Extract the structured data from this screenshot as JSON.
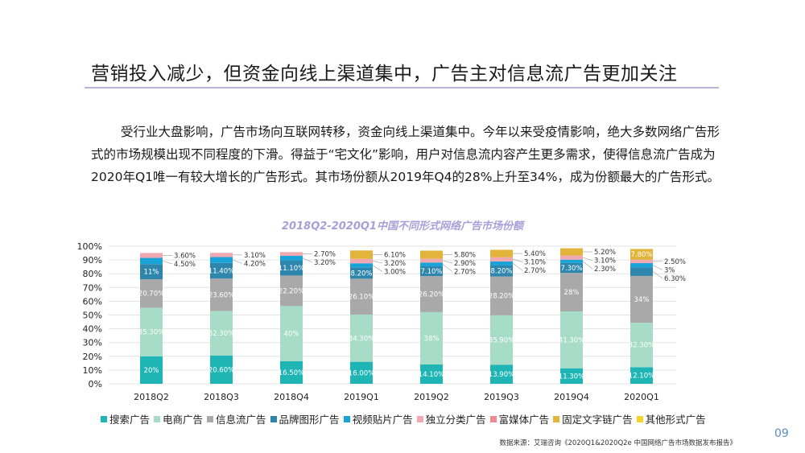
{
  "title": "营销投入减少，但资金向线上渠道集中，广告主对信息流广告更加关注",
  "paragraph": "受行业大盘影响，广告市场向互联网转移，资金向线上渠道集中。今年以来受疫情影响，绝大多数网络广告形式的市场规模出现不同程度的下滑。得益于“宅文化”影响，用户对信息流内容产生更多需求，使得信息流广告成为2020年Q1唯一有较大增长的广告形式。其市场份额从2019年Q4的28%上升至34%，成为份额最大的广告形式。",
  "source": "数据来源：艾瑞咨询《2020Q1&2020Q2e 中国网络广告市场数据发布报告》",
  "page_number": "09",
  "chart_data": {
    "type": "bar",
    "stacked": true,
    "title": "2018Q2-2020Q1中国不同形式网络广告市场份额",
    "xlabel": "",
    "ylabel": "",
    "ylim": [
      0,
      100
    ],
    "yticks": [
      "0%",
      "10%",
      "20%",
      "30%",
      "40%",
      "50%",
      "60%",
      "70%",
      "80%",
      "90%",
      "100%"
    ],
    "grid": true,
    "legend_position": "bottom",
    "categories": [
      "2018Q2",
      "2018Q3",
      "2018Q4",
      "2019Q1",
      "2019Q2",
      "2019Q3",
      "2019Q4",
      "2020Q1"
    ],
    "series": [
      {
        "name": "搜索广告",
        "color": "#1fb5b5",
        "values": [
          20,
          20.6,
          16.5,
          16.0,
          14.1,
          13.9,
          11.3,
          12.1
        ],
        "labels": [
          "20%",
          "20.60%",
          "16.50%",
          "16.00%",
          "14.10%",
          "13.90%",
          "11.30%",
          "12.10%"
        ]
      },
      {
        "name": "电商广告",
        "color": "#a6dcc8",
        "values": [
          35.3,
          32.3,
          40,
          34.3,
          38,
          35.9,
          41.3,
          32.3
        ],
        "labels": [
          "35.30%",
          "32.30%",
          "40%",
          "34.30%",
          "38%",
          "35.90%",
          "41.30%",
          "32.30%"
        ]
      },
      {
        "name": "信息流广告",
        "color": "#a9a9a9",
        "values": [
          20.7,
          23.6,
          22.2,
          26.1,
          26.2,
          28.2,
          28,
          34
        ],
        "labels": [
          "20.70%",
          "23.60%",
          "22.20%",
          "26.10%",
          "26.20%",
          "28.20%",
          "28%",
          "34%"
        ]
      },
      {
        "name": "品牌图形广告",
        "color": "#2f86ad",
        "values": [
          11,
          11.4,
          11.1,
          8.2,
          7.1,
          8.2,
          7.3,
          6.3
        ],
        "labels": [
          "11%",
          "11.40%",
          "11.10%",
          "8.20%",
          "7.10%",
          "8.20%",
          "7.30%",
          "6.30%"
        ]
      },
      {
        "name": "视频贴片广告",
        "color": "#1aa3d9",
        "values": [
          4.5,
          4.2,
          3.2,
          3.0,
          2.7,
          2.7,
          2.3,
          3
        ],
        "labels": [
          "4.50%",
          "4.20%",
          "3.20%",
          "3.00%",
          "2.70%",
          "2.70%",
          "2.30%",
          "3%"
        ]
      },
      {
        "name": "独立分类广告",
        "color": "#f0a9b0",
        "values": [
          3.6,
          3.1,
          2.7,
          3.2,
          2.9,
          3.1,
          3.1,
          2.5
        ],
        "labels": [
          "3.60%",
          "3.10%",
          "2.70%",
          "3.20%",
          "2.90%",
          "3.10%",
          "3.10%",
          "2.50%"
        ]
      },
      {
        "name": "富媒体广告",
        "color": "#f08a92",
        "values": [
          0,
          0,
          0,
          0,
          0,
          0,
          0,
          0
        ],
        "labels": [
          "",
          "",
          "",
          "",
          "",
          "",
          "",
          ""
        ]
      },
      {
        "name": "固定文字链广告",
        "color": "#e3b43a",
        "values": [
          0,
          0,
          0,
          6.1,
          5.8,
          5.4,
          5.2,
          7.8
        ],
        "labels": [
          "",
          "",
          "",
          "6.10%",
          "5.80%",
          "5.40%",
          "5.20%",
          "7.80%"
        ]
      },
      {
        "name": "其他形式广告",
        "color": "#f5d327",
        "values": [
          0,
          0,
          0,
          0,
          0,
          0,
          0,
          0
        ],
        "labels": [
          "",
          "",
          "",
          "",
          "",
          "",
          "",
          ""
        ]
      }
    ]
  }
}
